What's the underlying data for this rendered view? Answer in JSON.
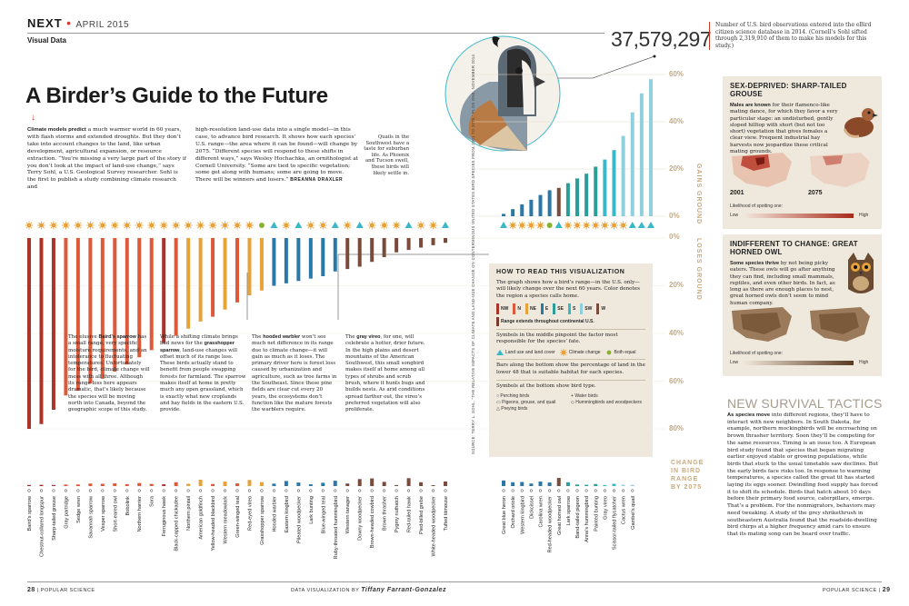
{
  "header": {
    "brand": "NEXT",
    "dot": "•",
    "month": "APRIL 2015",
    "section": "Visual Data"
  },
  "title": "A Birder’s Guide to the Future",
  "intro": {
    "p1_lead": "Climate models predict",
    "p1": " a much warmer world in 60 years, with flash storms and extended droughts. But they don’t take into account changes to the land, like urban development, agricultural expansion, or resource extraction. “You’re missing a very large part of the story if you don’t look at the impact of land-use change,” says Terry Sohl, a U.S. Geological Survey researcher. Sohl is the first to publish a study combining climate research and",
    "p2": "high-resolution land-use data into a single model—in this case, to advance bird research. It shows how each species’ U.S. range—the area where it can be found—will change by 2075. “Different species will respond to these shifts in different ways,” says Wesley Hochachka, an ornithologist at Cornell University. “Some are tied to specific vegetation; some get along with humans; some are going to move. There will be winners and losers.”",
    "byline": "BREANNA DRAXLER"
  },
  "quail_note": "Quails in the Southwest have a taste for suburban life. As Phoenix and Tucson swell, these birds will likely settle in.",
  "stat": {
    "number": "37,579,297",
    "note": "Number of U.S. bird observations entered into the eBird citizen science database in 2014. (Cornell’s Sohl sifted through 2,319,910 of them to make his models for this study.)"
  },
  "axes": {
    "gain_ticks": [
      "60%",
      "40%",
      "20%",
      "0%"
    ],
    "loss_ticks": [
      "0%",
      "20%",
      "40%",
      "60%",
      "80%"
    ],
    "gains_label": "GAINS GROUND",
    "losses_label": "LOSES GROUND",
    "change_label": "CHANGE IN BIRD RANGE BY 2075"
  },
  "annotations": {
    "baird": {
      "lead": "Baird’s sparrow",
      "pre": "The elusive ",
      "text": " has a small range, very specific moisture requirements, and an intolerance to fluctuating temperatures. Unfortunately for the bird, climate change will mess with all three. Although its range loss here appears dramatic, that’s likely because the species will be moving north into Canada, beyond the geographic scope of this study."
    },
    "grasshopper": {
      "pre": "While a shifting climate brings bad news for the ",
      "lead": "grasshopper sparrow",
      "text": ", land-use changes will offset much of its range loss. These birds actually stand to benefit from people swapping forests for farmland. The sparrow makes itself at home in pretty much any open grassland, which is exactly what new croplands and hay fields in the eastern U.S. provide."
    },
    "hooded": {
      "pre": "The ",
      "lead": "hooded warbler",
      "text": " won’t see much net difference in its range due to climate change—it will gain as much as it loses. The primary driver here is forest loss caused by urbanization and agriculture, such as tree farms in the Southeast. Since these pine fields are clear cut every 20 years, the ecosystems don’t function like the mature forests the warblers require."
    },
    "vireo": {
      "pre": "The ",
      "lead": "gray vireo",
      "text": ", for one, will celebrate a hotter, drier future. In the high plains and desert mountains of the American Southwest, this small songbird makes itself at home among all types of shrubs and scrub brush, where it hunts bugs and builds nests. As arid conditions spread farther out, the vireo’s preferred vegetation will also proliferate."
    }
  },
  "howto": {
    "title": "HOW TO READ THIS VISUALIZATION",
    "p1": "The graph shows how a bird’s range—in the U.S. only—will likely change over the next 60 years. Color denotes the region a species calls home.",
    "regions": [
      {
        "code": "NW",
        "color": "#a8342a"
      },
      {
        "code": "N",
        "color": "#dc5a3a"
      },
      {
        "code": "NE",
        "color": "#e8a23a"
      },
      {
        "code": "E",
        "color": "#2a78a8"
      },
      {
        "code": "SE",
        "color": "#2a9e98"
      },
      {
        "code": "S",
        "color": "#3ab8c8"
      },
      {
        "code": "SW",
        "color": "#8fd0dc"
      },
      {
        "code": "W",
        "color": "#7a4a3a"
      }
    ],
    "continental": "Range extends throughout continental U.S.",
    "p2": "Symbols in the middle pinpoint the factor most responsible for the species’ fate.",
    "factors": [
      "Land use and land cover",
      "Climate change",
      "Both equal"
    ],
    "p3": "Bars along the bottom show the percentage of land in the lower 48 that is suitable habitat for each species.",
    "p4": "Symbols at the bottom show bird type.",
    "types": [
      "Perching birds",
      "Water birds",
      "Pigeons, grouse, and quail",
      "Hummingbirds and woodpeckers",
      "Preying birds"
    ]
  },
  "source": "SOURCE: TERRY L. SOHL, “THE RELATIVE IMPACTS OF CLIMATE AND LAND-USE CHANGE ON CONTERMINOUS UNITED STATES BIRD SPECIES FROM 2001 TO 2075,” PLOS ONE, NOVEMBER 2014",
  "grouse": {
    "heading": "SEX-DEPRIVED: SHARP-TAILED GROUSE",
    "lead": "Males are known",
    "text": " for their flamenco-like mating dance, for which they favor a very particular stage: an undisturbed, gently sloped hilltop with short (but not too short) vegetation that gives females a clear view. Frequent industrial hay harvests now jeopardize these critical mating grounds.",
    "year1": "2001",
    "year2": "2075",
    "likely": "Likelihood of spotting one:",
    "low": "Low",
    "high": "High"
  },
  "owl": {
    "heading": "INDIFFERENT TO CHANGE: GREAT HORNED OWL",
    "lead": "Some species thrive",
    "text": " by not being picky eaters. These owls will go after anything they can find, including small mammals, reptiles, and even other birds. In fact, as long as there are enough places to nest, great horned owls don’t seem to mind human company.",
    "likely": "Likelihood of spotting one:",
    "low": "Low",
    "high": "High"
  },
  "new_survival": {
    "heading": "NEW SURVIVAL TACTICS",
    "lead": "As species move",
    "text": " into different regions, they’ll have to interact with new neighbors. In South Dakota, for example, northern mockingbirds will be encroaching on brown thrasher territory. Soon they’ll be competing for the same resources. Timing is an issue too. A European bird study found that species that began migrating earlier enjoyed stable or growing populations, while birds that stuck to the usual timetable saw declines. But the early birds face risks too. In response to warming temperatures, a species called the great tit has started laying its eggs sooner. Dwindling food supply has forced it to shift its schedule. Birds that hatch about 10 days before their primary food source, caterpillars, emerge. That’s a problem. For the nonmigrators, behaviors may need tweaking. A study of the grey shrikethrush in southeastern Australia found that the roadside-dwelling bird chirps at a higher frequency amid cars to ensure that its mating song can be heard over traffic."
  },
  "footer": {
    "left_page": "28",
    "left_mag": "POPULAR SCIENCE",
    "credit_pre": "DATA VISUALIZATION BY",
    "credit_name": "Tiffany Farrant-Gonzalez",
    "right_mag": "POPULAR SCIENCE",
    "right_page": "29"
  },
  "chart_data": {
    "type": "bar",
    "ylabel": "CHANGE IN BIRD RANGE BY 2075",
    "ylim": [
      -80,
      60
    ],
    "losers": [
      {
        "name": "Baird’s sparrow",
        "value": -80,
        "region": "NW",
        "factor": "climate",
        "habitat": 9
      },
      {
        "name": "Chestnut-collared longspur",
        "value": -78,
        "region": "NW",
        "factor": "climate",
        "habitat": 10
      },
      {
        "name": "Sharp-tailed grouse",
        "value": -72,
        "region": "NW",
        "factor": "climate",
        "habitat": 9
      },
      {
        "name": "Gray partridge",
        "value": -66,
        "region": "N",
        "factor": "climate",
        "habitat": 12
      },
      {
        "name": "Sedge wren",
        "value": -64,
        "region": "N",
        "factor": "climate",
        "habitat": 13
      },
      {
        "name": "Savannah sparrow",
        "value": -61,
        "region": "N",
        "factor": "climate",
        "habitat": 20
      },
      {
        "name": "Vesper sparrow",
        "value": -59,
        "region": "N",
        "factor": "climate",
        "habitat": 18
      },
      {
        "name": "Short-eared owl",
        "value": -56,
        "region": "N",
        "factor": "climate",
        "habitat": 22
      },
      {
        "name": "Bobolink",
        "value": -53,
        "region": "N",
        "factor": "climate",
        "habitat": 15
      },
      {
        "name": "Northern harrier",
        "value": -50,
        "region": "N",
        "factor": "climate",
        "habitat": 24
      },
      {
        "name": "Sora",
        "value": -47,
        "region": "N",
        "factor": "climate",
        "habitat": 17
      },
      {
        "name": "Ferruginous hawk",
        "value": -44,
        "region": "NW",
        "factor": "climate",
        "habitat": 14
      },
      {
        "name": "Black-capped chickadee",
        "value": -41,
        "region": "N",
        "factor": "climate",
        "habitat": 30
      },
      {
        "name": "Northern pintail",
        "value": -38,
        "region": "NE",
        "factor": "climate",
        "habitat": 18
      },
      {
        "name": "American goldfinch",
        "value": -35,
        "region": "NE",
        "factor": "climate",
        "habitat": 50
      },
      {
        "name": "Yellow-headed blackbird",
        "value": -33,
        "region": "N",
        "factor": "climate",
        "habitat": 16
      },
      {
        "name": "Western meadowlark",
        "value": -30,
        "region": "NE",
        "factor": "climate",
        "habitat": 36
      },
      {
        "name": "Green-winged teal",
        "value": -27,
        "region": "N",
        "factor": "climate",
        "habitat": 21
      },
      {
        "name": "Red-eyed vireo",
        "value": -24,
        "region": "NE",
        "factor": "climate",
        "habitat": 48
      },
      {
        "name": "Grasshopper sparrow",
        "value": -22,
        "region": "NE",
        "factor": "both",
        "habitat": 31
      },
      {
        "name": "Hooded warbler",
        "value": -20,
        "region": "E",
        "factor": "land",
        "habitat": 19
      },
      {
        "name": "Eastern kingbird",
        "value": -19,
        "region": "E",
        "factor": "climate",
        "habitat": 40
      },
      {
        "name": "Pileated woodpecker",
        "value": -18,
        "region": "E",
        "factor": "land",
        "habitat": 28
      },
      {
        "name": "Lark bunting",
        "value": -17,
        "region": "E",
        "factor": "climate",
        "habitat": 14
      },
      {
        "name": "Blue-winged teal",
        "value": -16,
        "region": "E",
        "factor": "climate",
        "habitat": 26
      },
      {
        "name": "Ruby-throated hummingbird",
        "value": -14,
        "region": "E",
        "factor": "land",
        "habitat": 42
      },
      {
        "name": "Western tanager",
        "value": -13,
        "region": "W",
        "factor": "climate",
        "habitat": 20
      },
      {
        "name": "Downy woodpecker",
        "value": -12,
        "region": "W",
        "factor": "land",
        "habitat": 55
      },
      {
        "name": "Brown-headed cowbird",
        "value": -10,
        "region": "W",
        "factor": "climate",
        "habitat": 60
      },
      {
        "name": "Brown thrasher",
        "value": -8,
        "region": "W",
        "factor": "climate",
        "habitat": 33
      },
      {
        "name": "Pygmy nuthatch",
        "value": -6,
        "region": "W",
        "factor": "climate",
        "habitat": 8
      },
      {
        "name": "Red-tailed hawk",
        "value": -5,
        "region": "W",
        "factor": "land",
        "habitat": 62
      },
      {
        "name": "Pied-billed grebe",
        "value": -4,
        "region": "W",
        "factor": "climate",
        "habitat": 30
      },
      {
        "name": "White-headed woodpecker",
        "value": -3,
        "region": "W",
        "factor": "climate",
        "habitat": 7
      },
      {
        "name": "Tufted titmouse",
        "value": -2,
        "region": "W",
        "factor": "land",
        "habitat": 36
      }
    ],
    "gainers": [
      {
        "name": "Great blue heron",
        "value": 1,
        "region": "E",
        "factor": "land",
        "habitat": 44
      },
      {
        "name": "Orchard oriole",
        "value": 3,
        "region": "E",
        "factor": "climate",
        "habitat": 30
      },
      {
        "name": "Western kingbird",
        "value": 5,
        "region": "E",
        "factor": "climate",
        "habitat": 32
      },
      {
        "name": "Dickcissel",
        "value": 7,
        "region": "E",
        "factor": "climate",
        "habitat": 20
      },
      {
        "name": "Carolina wren",
        "value": 9,
        "region": "E",
        "factor": "climate",
        "habitat": 36
      },
      {
        "name": "Red-headed woodpecker",
        "value": 11,
        "region": "E",
        "factor": "both",
        "habitat": 28
      },
      {
        "name": "Great horned owl",
        "value": 12,
        "region": "W",
        "factor": "land",
        "habitat": 64
      },
      {
        "name": "Lark sparrow",
        "value": 14,
        "region": "SE",
        "factor": "climate",
        "habitat": 30
      },
      {
        "name": "Band-tailed pigeon",
        "value": 16,
        "region": "SE",
        "factor": "climate",
        "habitat": 12
      },
      {
        "name": "Anna’s hummingbird",
        "value": 18,
        "region": "SE",
        "factor": "climate",
        "habitat": 10
      },
      {
        "name": "Painted bunting",
        "value": 21,
        "region": "SE",
        "factor": "climate",
        "habitat": 16
      },
      {
        "name": "Gray vireo",
        "value": 24,
        "region": "S",
        "factor": "climate",
        "habitat": 8
      },
      {
        "name": "Scissor-tailed flycatcher",
        "value": 28,
        "region": "S",
        "factor": "climate",
        "habitat": 18
      },
      {
        "name": "Cactus wren",
        "value": 34,
        "region": "SW",
        "factor": "climate",
        "habitat": 10
      },
      {
        "name": "Gambel’s quail",
        "value": 44,
        "region": "SW",
        "factor": "land",
        "habitat": 9
      },
      {
        "name": "",
        "value": 52,
        "region": "SW",
        "factor": "land",
        "habitat": 0
      },
      {
        "name": "",
        "value": 58,
        "region": "SW",
        "factor": "land",
        "habitat": 0
      }
    ]
  }
}
